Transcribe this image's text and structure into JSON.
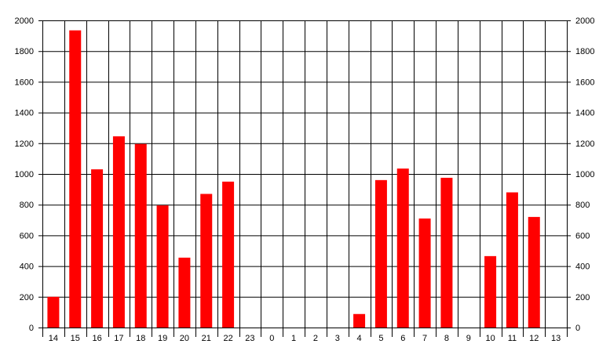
{
  "chart_data": {
    "type": "bar",
    "title": "",
    "xlabel": "",
    "ylabel": "",
    "categories": [
      "14",
      "15",
      "16",
      "17",
      "18",
      "19",
      "20",
      "21",
      "22",
      "23",
      "0",
      "1",
      "2",
      "3",
      "4",
      "5",
      "6",
      "7",
      "8",
      "9",
      "10",
      "11",
      "12",
      "13"
    ],
    "values": [
      200,
      1935,
      1030,
      1245,
      1195,
      795,
      455,
      870,
      950,
      0,
      0,
      0,
      0,
      0,
      88,
      960,
      1035,
      710,
      975,
      0,
      465,
      880,
      720,
      0
    ],
    "ylim": [
      0,
      2000
    ],
    "yticks": [
      0,
      200,
      400,
      600,
      800,
      1000,
      1200,
      1400,
      1600,
      1800,
      2000
    ],
    "grid": true,
    "secondary_y_axis": true,
    "legend": "none",
    "bar_color": "#ff0000"
  }
}
